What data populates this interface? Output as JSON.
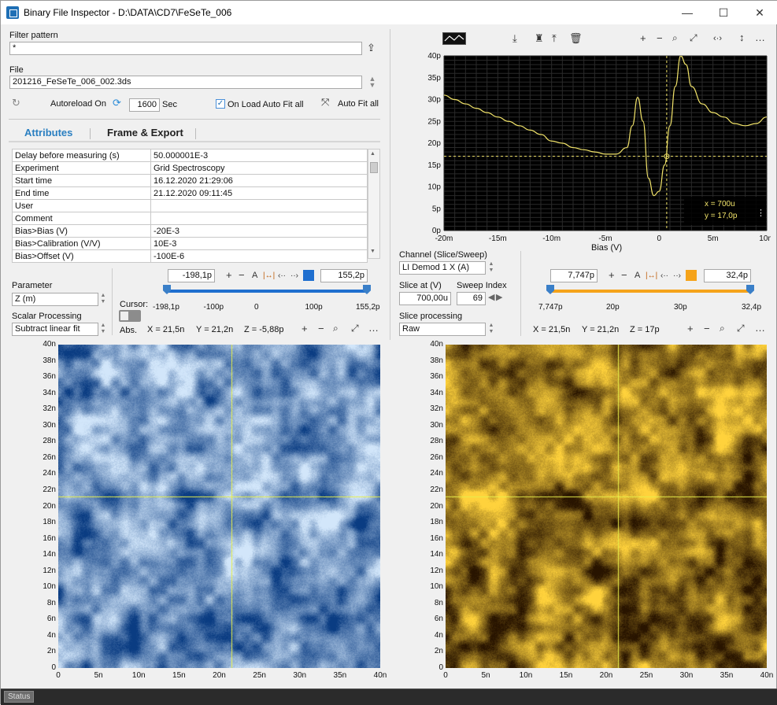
{
  "window": {
    "title": "Binary File Inspector - D:\\DATA\\CD7\\FeSeTe_006",
    "minimize": "—",
    "maximize": "☐",
    "close": "✕"
  },
  "filter": {
    "label": "Filter pattern",
    "value": "*"
  },
  "file": {
    "label": "File",
    "value": "201216_FeSeTe_006_002.3ds"
  },
  "autoreload": {
    "label": "Autoreload On",
    "interval": "1600",
    "unit": "Sec",
    "onload_label": "On Load Auto Fit all",
    "autofit_label": "Auto Fit all"
  },
  "tabs": {
    "attributes": "Attributes",
    "frame_export": "Frame & Export"
  },
  "attributes": [
    {
      "key": "Delay before measuring (s)",
      "value": "50.000001E-3"
    },
    {
      "key": "Experiment",
      "value": "Grid Spectroscopy"
    },
    {
      "key": "Start time",
      "value": "16.12.2020 21:29:06"
    },
    {
      "key": "End time",
      "value": "21.12.2020 09:11:45"
    },
    {
      "key": "User",
      "value": ""
    },
    {
      "key": "Comment",
      "value": ""
    },
    {
      "key": "Bias>Bias (V)",
      "value": "-20E-3"
    },
    {
      "key": "Bias>Calibration (V/V)",
      "value": "10E-3"
    },
    {
      "key": "Bias>Offset (V)",
      "value": "-100E-6"
    }
  ],
  "left_panel": {
    "parameter_label": "Parameter",
    "parameter_value": "Z (m)",
    "scalar_label": "Scalar Processing",
    "scalar_value": "Subtract linear fit",
    "cursor_label": "Cursor:",
    "abs_label": "Abs.",
    "range_min": "-198,1p",
    "range_max": "155,2p",
    "plus": "+",
    "minus": "−",
    "a": "A",
    "scale_ticks": [
      "-198,1p",
      "-100p",
      "0",
      "100p",
      "155,2p"
    ],
    "readout": {
      "x": "X = 21,5n",
      "y": "Y = 21,2n",
      "z": "Z = -5,88p"
    }
  },
  "right_panel": {
    "channel_label": "Channel (Slice/Sweep)",
    "channel_value": "LI Demod 1 X (A)",
    "slice_label": "Slice at (V)",
    "slice_value": "700,00u",
    "sweep_label": "Sweep Index",
    "sweep_value": "69",
    "slice_proc_label": "Slice processing",
    "slice_proc_value": "Raw",
    "range_min": "7,747p",
    "range_max": "32,4p",
    "plus": "+",
    "minus": "−",
    "a": "A",
    "scale_ticks": [
      "7,747p",
      "20p",
      "30p",
      "32,4p"
    ],
    "readout": {
      "x": "X = 21,5n",
      "y": "Y = 21,2n",
      "z": "Z = 17p"
    }
  },
  "spectrum": {
    "xlabel": "Bias (V)",
    "cursor_x": "x = 700u",
    "cursor_y": "y = 17,0p",
    "more": "⋮"
  },
  "image_axis": {
    "ticks": [
      "0",
      "5n",
      "10n",
      "15n",
      "20n",
      "25n",
      "30n",
      "35n",
      "40n"
    ],
    "yticks": [
      "40n",
      "38n",
      "36n",
      "34n",
      "32n",
      "30n",
      "28n",
      "26n",
      "24n",
      "22n",
      "20n",
      "18n",
      "16n",
      "14n",
      "12n",
      "10n",
      "8n",
      "6n",
      "4n",
      "2n",
      "0"
    ]
  },
  "status": {
    "label": "Status"
  },
  "colors": {
    "accent": "#1f6fb5",
    "orange": "#f5a31a",
    "plot_bg": "#000000",
    "trace": "#f2e46a"
  },
  "chart_data": {
    "type": "line",
    "xlabel": "Bias (V)",
    "xlim": [
      -0.02,
      0.01
    ],
    "ylim": [
      0,
      40
    ],
    "xticks": [
      "-20m",
      "-15m",
      "-10m",
      "-5m",
      "0",
      "5m",
      "10m"
    ],
    "yticks": [
      "0p",
      "5p",
      "10p",
      "15p",
      "20p",
      "25p",
      "30p",
      "35p",
      "40p"
    ],
    "x": [
      -0.02,
      -0.019,
      -0.018,
      -0.017,
      -0.016,
      -0.015,
      -0.014,
      -0.013,
      -0.012,
      -0.011,
      -0.01,
      -0.009,
      -0.008,
      -0.007,
      -0.006,
      -0.005,
      -0.004,
      -0.003,
      -0.0025,
      -0.002,
      -0.0015,
      -0.001,
      -0.0005,
      0,
      0.0005,
      0.001,
      0.0015,
      0.002,
      0.0025,
      0.003,
      0.004,
      0.005,
      0.006,
      0.007,
      0.008,
      0.009,
      0.01
    ],
    "y": [
      31,
      30,
      29,
      28,
      27,
      26,
      25,
      24,
      23,
      22,
      20.5,
      20,
      19,
      18.5,
      18,
      17.5,
      17.5,
      19,
      24,
      30.5,
      25,
      12,
      8,
      9,
      15,
      24,
      33,
      43,
      38,
      33,
      29,
      27,
      26,
      24.5,
      24,
      24.5,
      26
    ],
    "cursor": {
      "x": 0.0007,
      "y": 17.0
    }
  }
}
